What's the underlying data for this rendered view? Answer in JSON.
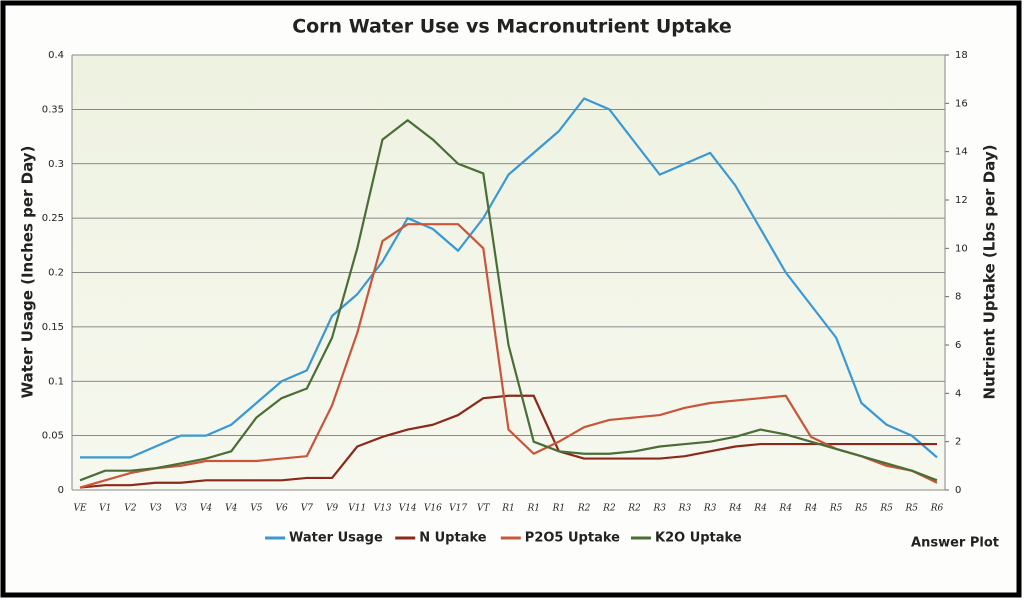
{
  "chart_data": {
    "type": "line",
    "title": "Corn Water Use vs Macronutrient Uptake",
    "y_label": "Water Usage (Inches per Day)",
    "y2_label": "Nutrient Uptake (Lbs per Day)",
    "brand": "Answer Plot",
    "categories": [
      "VE",
      "V1",
      "V2",
      "V3",
      "V3",
      "V4",
      "V4",
      "V5",
      "V6",
      "V7",
      "V9",
      "V11",
      "V13",
      "V14",
      "V16",
      "V17",
      "VT",
      "R1",
      "R1",
      "R1",
      "R2",
      "R2",
      "R2",
      "R3",
      "R3",
      "R3",
      "R4",
      "R4",
      "R4",
      "R4",
      "R5",
      "R5",
      "R5",
      "R5",
      "R6"
    ],
    "series": [
      {
        "name": "Water Usage",
        "color": "#3a98d4",
        "axis": "y",
        "values": [
          0.03,
          0.03,
          0.03,
          0.04,
          0.05,
          0.05,
          0.06,
          0.08,
          0.1,
          0.11,
          0.16,
          0.18,
          0.21,
          0.25,
          0.24,
          0.22,
          0.25,
          0.29,
          0.31,
          0.33,
          0.36,
          0.35,
          0.32,
          0.29,
          0.3,
          0.31,
          0.28,
          0.24,
          0.2,
          0.17,
          0.14,
          0.08,
          0.06,
          0.05,
          0.03
        ]
      },
      {
        "name": "N Uptake",
        "color": "#8b2a1a",
        "axis": "y2",
        "values": [
          0.1,
          0.2,
          0.2,
          0.3,
          0.3,
          0.4,
          0.4,
          0.4,
          0.4,
          0.5,
          0.5,
          1.8,
          2.2,
          2.5,
          2.7,
          3.1,
          3.8,
          3.9,
          3.9,
          1.6,
          1.3,
          1.3,
          1.3,
          1.3,
          1.4,
          1.6,
          1.8,
          1.9,
          1.9,
          1.9,
          1.9,
          1.9,
          1.9,
          1.9,
          1.9
        ]
      },
      {
        "name": "P2O5 Uptake",
        "color": "#c9563a",
        "axis": "y2",
        "values": [
          0.1,
          0.4,
          0.7,
          0.9,
          1.0,
          1.2,
          1.2,
          1.2,
          1.3,
          1.4,
          3.5,
          6.5,
          10.3,
          11,
          11,
          11,
          10,
          2.5,
          1.5,
          2.0,
          2.6,
          2.9,
          3.0,
          3.1,
          3.4,
          3.6,
          3.7,
          3.8,
          3.9,
          2.2,
          1.7,
          1.4,
          1.0,
          0.8,
          0.3
        ]
      },
      {
        "name": "K2O Uptake",
        "color": "#4a6e36",
        "axis": "y2",
        "values": [
          0.4,
          0.8,
          0.8,
          0.9,
          1.1,
          1.3,
          1.6,
          3.0,
          3.8,
          4.2,
          6.3,
          10.0,
          14.5,
          15.3,
          14.5,
          13.5,
          13.1,
          6.0,
          2.0,
          1.6,
          1.5,
          1.5,
          1.6,
          1.8,
          1.9,
          2.0,
          2.2,
          2.5,
          2.3,
          2.0,
          1.7,
          1.4,
          1.1,
          0.8,
          0.4
        ]
      }
    ],
    "ylim": [
      0,
      0.4
    ],
    "yticks": [
      0,
      0.05,
      0.1,
      0.15,
      0.2,
      0.25,
      0.3,
      0.35,
      0.4
    ],
    "y2lim": [
      0,
      18
    ],
    "y2ticks": [
      0,
      2,
      4,
      6,
      8,
      10,
      12,
      14,
      16,
      18
    ],
    "grid": true,
    "legend": "bottom"
  }
}
